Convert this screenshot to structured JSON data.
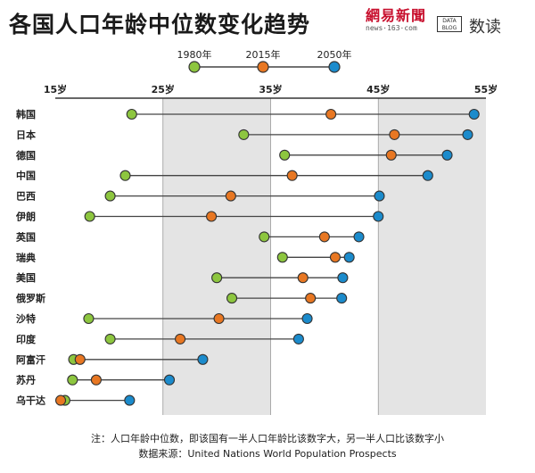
{
  "header": {
    "title": "各国人口年龄中位数变化趋势",
    "brand_name": "網易新聞",
    "brand_url": "news·163·com",
    "datablog": "DATA BLOG",
    "section": "数读"
  },
  "notes": {
    "note": "注：人口年龄中位数，即该国有一半人口年龄比该数字大，另一半人口比该数字小",
    "source": "数据来源：United Nations World Population Prospects"
  },
  "colors": {
    "1980": "#8dc63f",
    "2015": "#e87722",
    "2050": "#1b8bcc",
    "band": "#e4e4e4",
    "line": "#444444"
  },
  "chart_data": {
    "type": "dumbbell",
    "title": "各国人口年龄中位数变化趋势",
    "xlabel": "",
    "ylabel": "",
    "xlim": [
      15,
      55
    ],
    "x_ticks": [
      15,
      25,
      35,
      45,
      55
    ],
    "x_tick_labels": [
      "15岁",
      "25岁",
      "35岁",
      "45岁",
      "55岁"
    ],
    "legend": [
      "1980年",
      "2015年",
      "2050年"
    ],
    "legend_position": "top",
    "categories": [
      "韩国",
      "日本",
      "德国",
      "中国",
      "巴西",
      "伊朗",
      "英国",
      "瑞典",
      "美国",
      "俄罗斯",
      "沙特",
      "印度",
      "阿富汗",
      "苏丹",
      "乌干达"
    ],
    "series": [
      {
        "name": "1980年",
        "values": [
          22.1,
          32.5,
          36.3,
          21.5,
          20.1,
          18.2,
          34.4,
          36.1,
          30.0,
          31.4,
          18.1,
          20.1,
          16.7,
          16.6,
          15.9
        ]
      },
      {
        "name": "2015年",
        "values": [
          40.6,
          46.5,
          46.2,
          37.0,
          31.3,
          29.5,
          40.0,
          41.0,
          38.0,
          38.7,
          30.2,
          26.6,
          17.3,
          18.8,
          15.5
        ]
      },
      {
        "name": "2050年",
        "values": [
          53.9,
          53.3,
          51.4,
          49.6,
          45.1,
          45.0,
          43.2,
          42.3,
          41.7,
          41.6,
          38.4,
          37.6,
          28.7,
          25.6,
          21.9
        ]
      }
    ]
  }
}
